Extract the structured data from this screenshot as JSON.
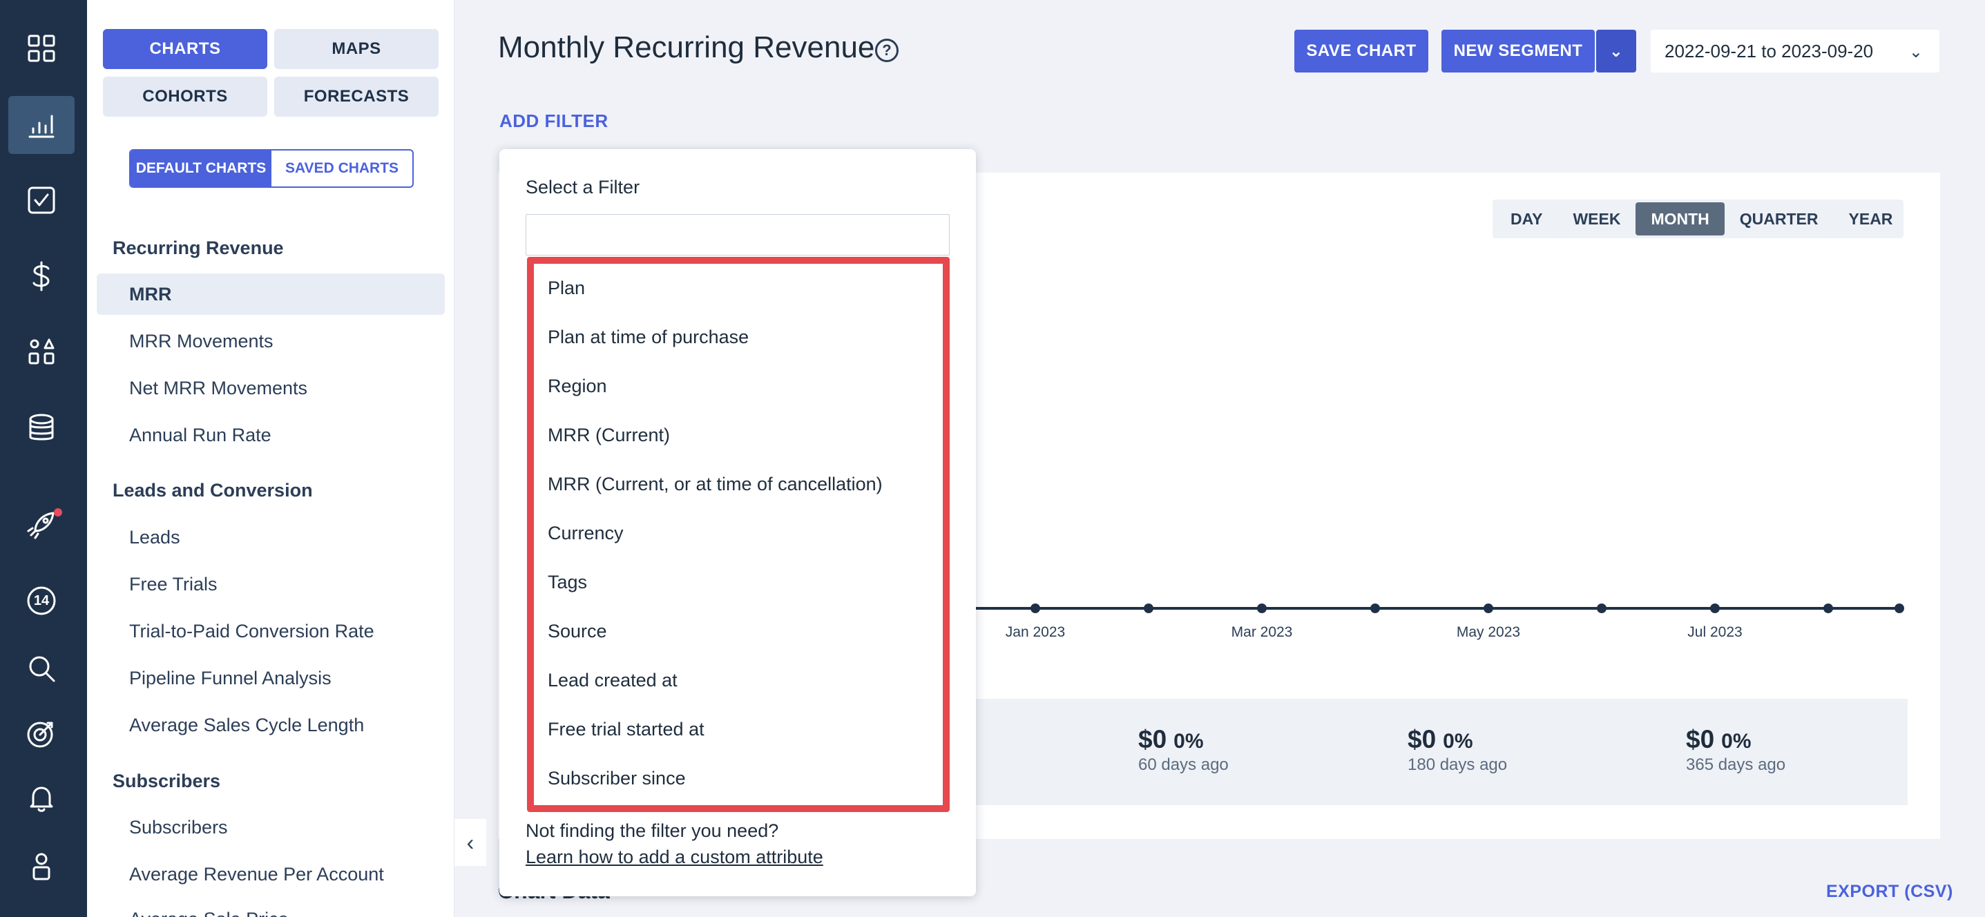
{
  "rail": {
    "icons": [
      "grid-icon",
      "bar-chart-icon",
      "checkbox-icon",
      "dollar-icon",
      "shapes-icon",
      "database-icon",
      "rocket-icon",
      "badge-icon",
      "search-icon",
      "target-icon",
      "bell-icon",
      "user-icon"
    ],
    "badge_count": "14"
  },
  "nav": {
    "top_tabs": [
      "CHARTS",
      "MAPS",
      "COHORTS",
      "FORECASTS"
    ],
    "chart_sets": [
      "DEFAULT CHARTS",
      "SAVED CHARTS"
    ],
    "sections": [
      {
        "heading": "Recurring Revenue",
        "items": [
          "MRR",
          "MRR Movements",
          "Net MRR Movements",
          "Annual Run Rate"
        ]
      },
      {
        "heading": "Leads and Conversion",
        "items": [
          "Leads",
          "Free Trials",
          "Trial-to-Paid Conversion Rate",
          "Pipeline Funnel Analysis",
          "Average Sales Cycle Length"
        ]
      },
      {
        "heading": "Subscribers",
        "items": [
          "Subscribers",
          "Average Revenue Per Account",
          "Average Sale Price"
        ]
      }
    ],
    "selected_item": "MRR"
  },
  "header": {
    "title": "Monthly Recurring Revenue",
    "help": "?",
    "save_chart": "SAVE CHART",
    "new_segment": "NEW SEGMENT",
    "date_range": "2022-09-21 to 2023-09-20",
    "add_filter": "ADD FILTER"
  },
  "periods": {
    "options": [
      "DAY",
      "WEEK",
      "MONTH",
      "QUARTER",
      "YEAR"
    ],
    "selected": "MONTH"
  },
  "chart_data": {
    "type": "line",
    "x": [
      "Jan 2023",
      "Mar 2023",
      "May 2023",
      "Jul 2023"
    ],
    "tick_labels": [
      "Jan 2023",
      "Mar 2023",
      "May 2023",
      "Jul 2023"
    ],
    "points": 9
  },
  "summary": [
    {
      "value": "$0",
      "pct": "0%",
      "label": "60 days ago"
    },
    {
      "value": "$0",
      "pct": "0%",
      "label": "180 days ago"
    },
    {
      "value": "$0",
      "pct": "0%",
      "label": "365 days ago"
    }
  ],
  "footer": {
    "chart_data_heading": "Chart Data",
    "export": "EXPORT (CSV)"
  },
  "filter_popover": {
    "title": "Select a Filter",
    "search_value": "",
    "options": [
      "Plan",
      "Plan at time of purchase",
      "Region",
      "MRR (Current)",
      "MRR (Current, or at time of cancellation)",
      "Currency",
      "Tags",
      "Source",
      "Lead created at",
      "Free trial started at",
      "Subscriber since"
    ],
    "help_text": "Not finding the filter you need?",
    "help_link": "Learn how to add a custom attribute"
  },
  "colors": {
    "accent": "#4b62dc",
    "rail": "#1f3148",
    "highlight": "#e5484d"
  }
}
